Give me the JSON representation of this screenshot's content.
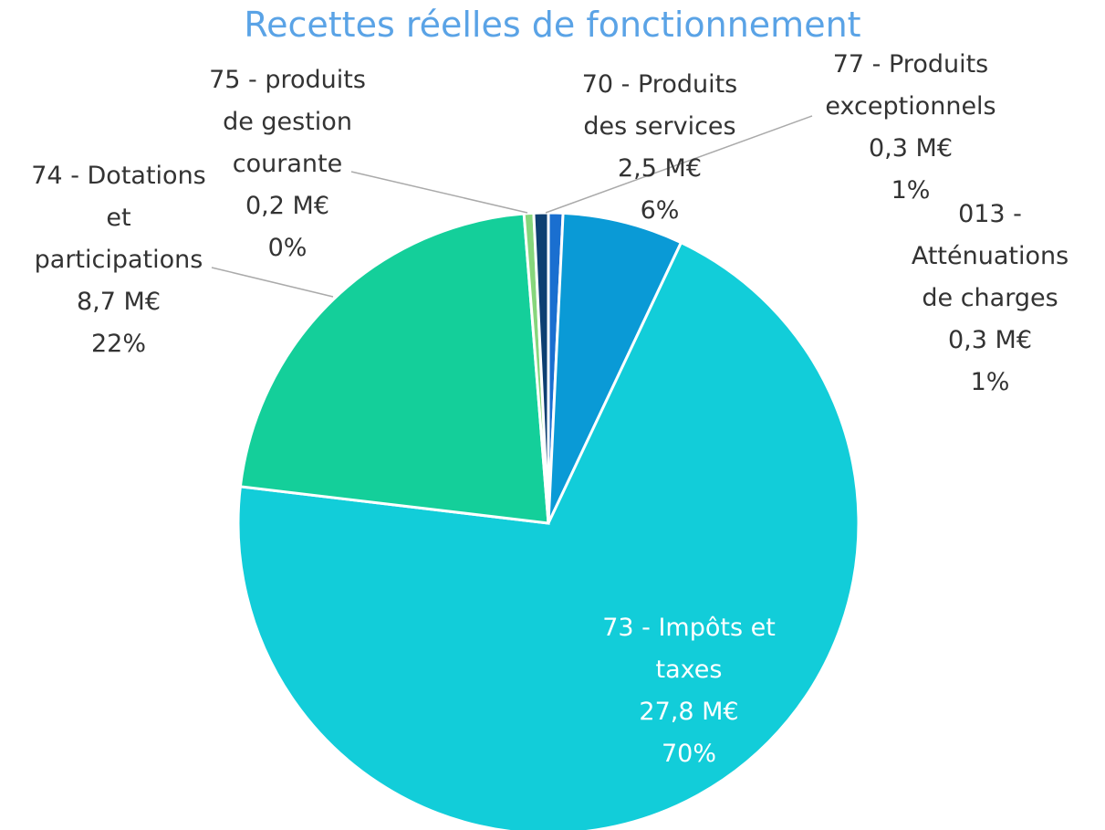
{
  "chart_data": {
    "type": "pie",
    "title": "Recettes réelles de fonctionnement",
    "categories": [
      "013 - Atténuations de charges",
      "70 - Produits des services",
      "73 - Impôts et taxes",
      "74 - Dotations et participations",
      "75 - produits de gestion courante",
      "77 - Produits exceptionnels"
    ],
    "values": [
      0.3,
      2.5,
      27.8,
      8.7,
      0.2,
      0.3
    ],
    "value_labels": [
      "0,3 M€",
      "2,5 M€",
      "27,8 M€",
      "8,7 M€",
      "0,2 M€",
      "0,3 M€"
    ],
    "percents": [
      1,
      6,
      70,
      22,
      0,
      1
    ],
    "percent_labels": [
      "1%",
      "6%",
      "70%",
      "22%",
      "0%",
      "1%"
    ],
    "colors": [
      "#1a6fd0",
      "#0a9ad6",
      "#12cdd9",
      "#14cf9a",
      "#86d67c",
      "#0d3f72"
    ]
  }
}
